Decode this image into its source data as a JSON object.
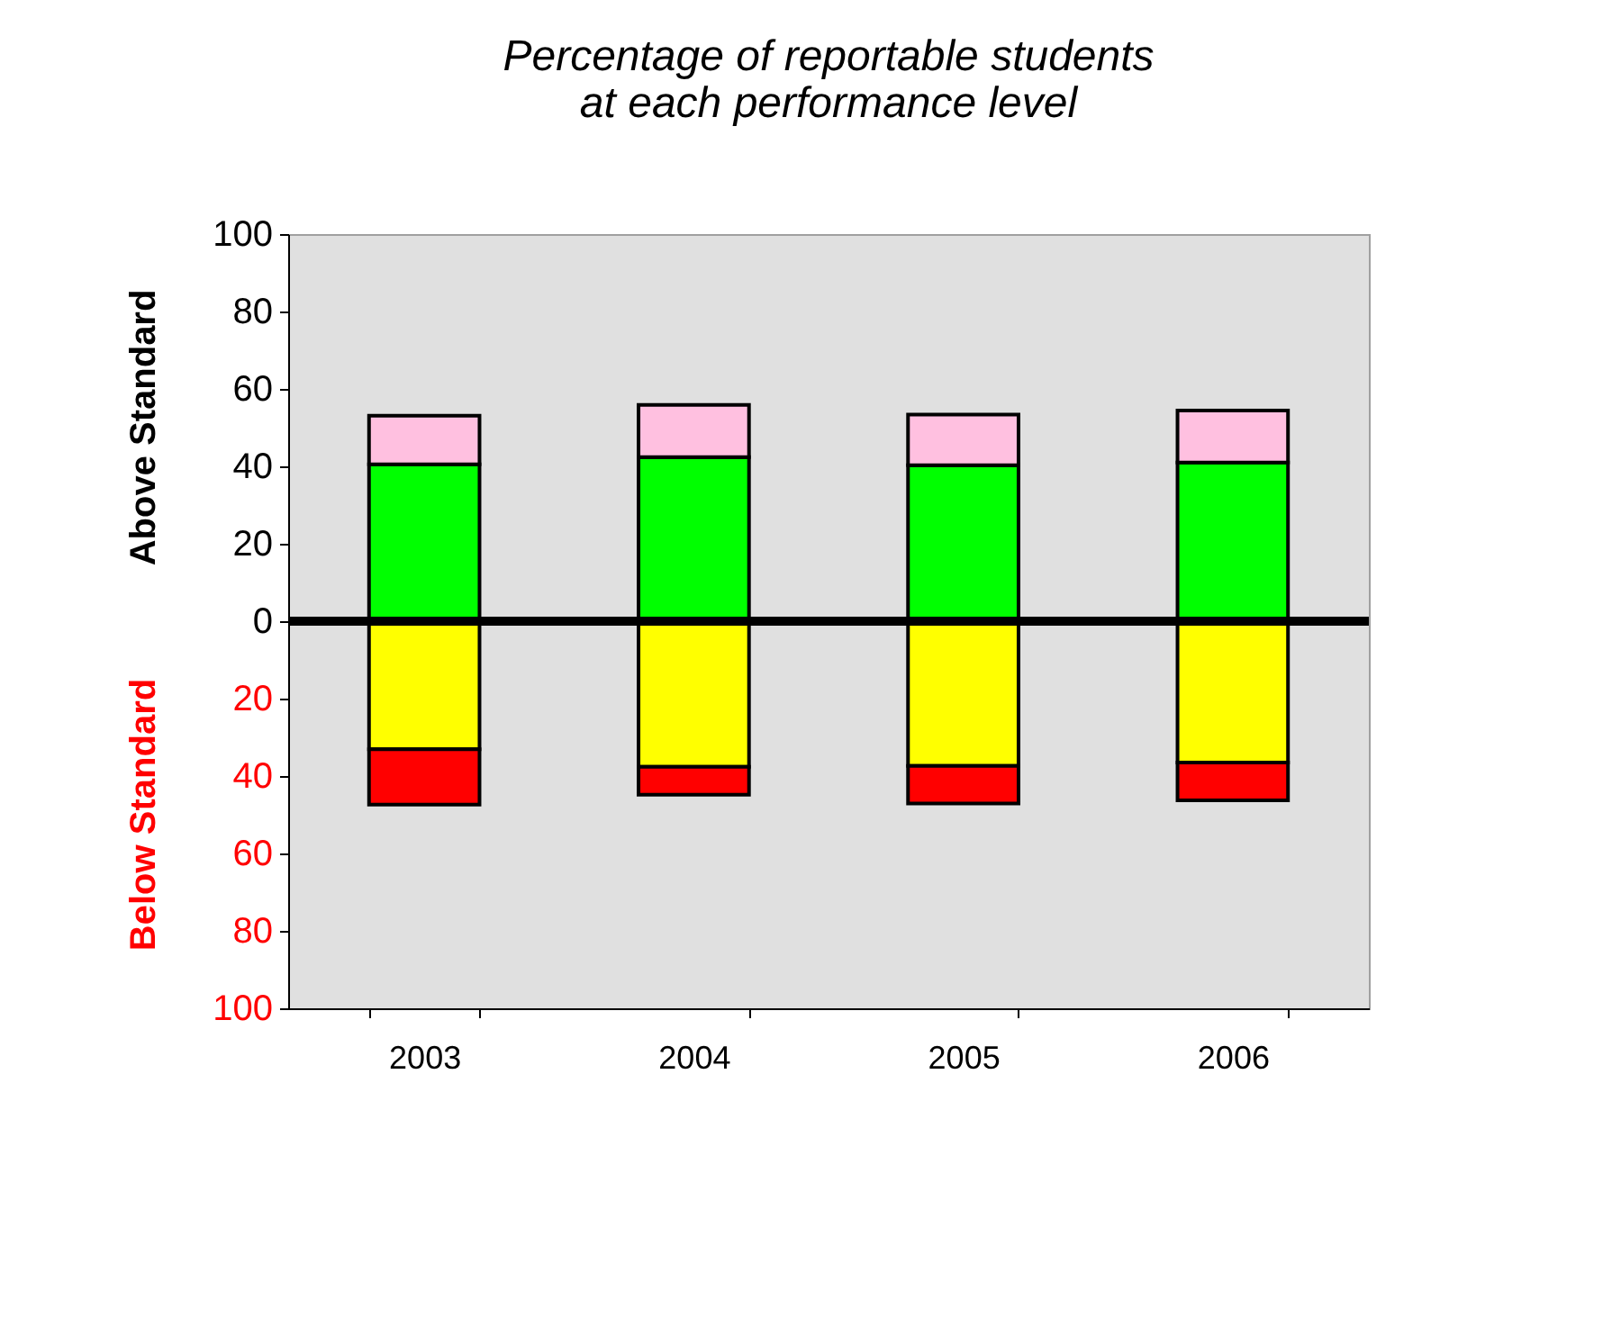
{
  "chart_data": {
    "type": "bar",
    "stacked": true,
    "title": [
      "Percentage of reportable students",
      "at each performance level"
    ],
    "ylabel": "Above Standard",
    "annotations": [
      "Below Standard"
    ],
    "categories": [
      "2003",
      "2004",
      "2005",
      "2006"
    ],
    "series": [
      {
        "color": "#00ff00",
        "values": [
          40.5,
          42.4,
          40.3,
          41.0
        ]
      },
      {
        "color": "#ffc0e0",
        "values": [
          12.6,
          13.5,
          13.1,
          13.4
        ]
      },
      {
        "color": "#ffff00",
        "values": [
          -33.1,
          -37.6,
          -37.4,
          -36.5
        ]
      },
      {
        "color": "#ff0000",
        "values": [
          -14.3,
          -7.2,
          -9.7,
          -9.8
        ]
      }
    ],
    "ylim": [
      -100,
      100
    ],
    "yticks": [
      {
        "value": -100,
        "label": "100"
      },
      {
        "value": -80,
        "label": "80"
      },
      {
        "value": -60,
        "label": "60"
      },
      {
        "value": -40,
        "label": "40"
      },
      {
        "value": -20,
        "label": "20"
      },
      0,
      20,
      40,
      60,
      80,
      100
    ],
    "ref_lines": [
      {
        "axis": "y",
        "value": 0,
        "color": "#000000"
      }
    ],
    "grid": false
  }
}
